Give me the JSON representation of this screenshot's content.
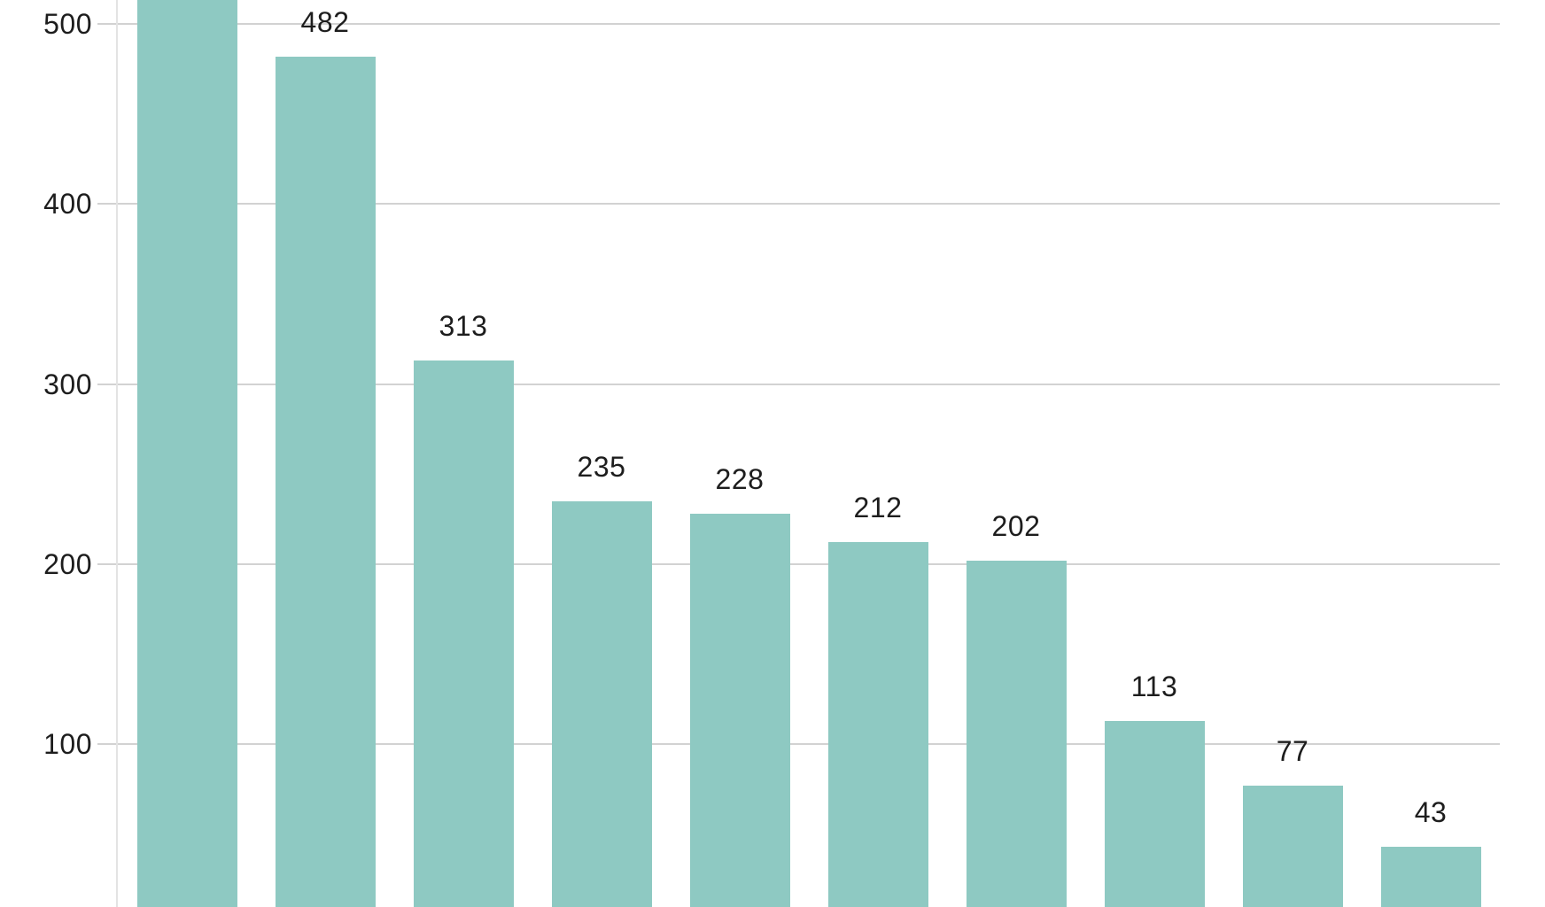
{
  "chart_data": {
    "type": "bar",
    "orientation": "vertical",
    "title": "",
    "xlabel": "",
    "ylabel": "",
    "legend": null,
    "grid": true,
    "bars": [
      {
        "value": null,
        "value_label": "",
        "cut_off_top": true
      },
      {
        "value": 482,
        "value_label": "482"
      },
      {
        "value": 313,
        "value_label": "313"
      },
      {
        "value": 235,
        "value_label": "235"
      },
      {
        "value": 228,
        "value_label": "228"
      },
      {
        "value": 212,
        "value_label": "212"
      },
      {
        "value": 202,
        "value_label": "202"
      },
      {
        "value": 113,
        "value_label": "113"
      },
      {
        "value": 77,
        "value_label": "77"
      },
      {
        "value": 43,
        "value_label": "43"
      }
    ],
    "y_axis": {
      "ticks": [
        {
          "value": 500,
          "label": "500"
        },
        {
          "value": 400,
          "label": "400"
        },
        {
          "value": 300,
          "label": "300"
        },
        {
          "value": 200,
          "label": "200"
        },
        {
          "value": 100,
          "label": "100"
        }
      ]
    },
    "x_axis": {
      "category_labels_visible": false
    },
    "colors": {
      "bar": "#8ec9c2",
      "gridline": "#d2d2d2",
      "axis_line": "#e3e3e3",
      "text": "#1d1d1d",
      "background": "#ffffff"
    },
    "notes": "Cropped view: first bar extends past the top edge (value label not visible); all bars extend past the bottom edge; no title, legend, or x-axis labels visible."
  }
}
